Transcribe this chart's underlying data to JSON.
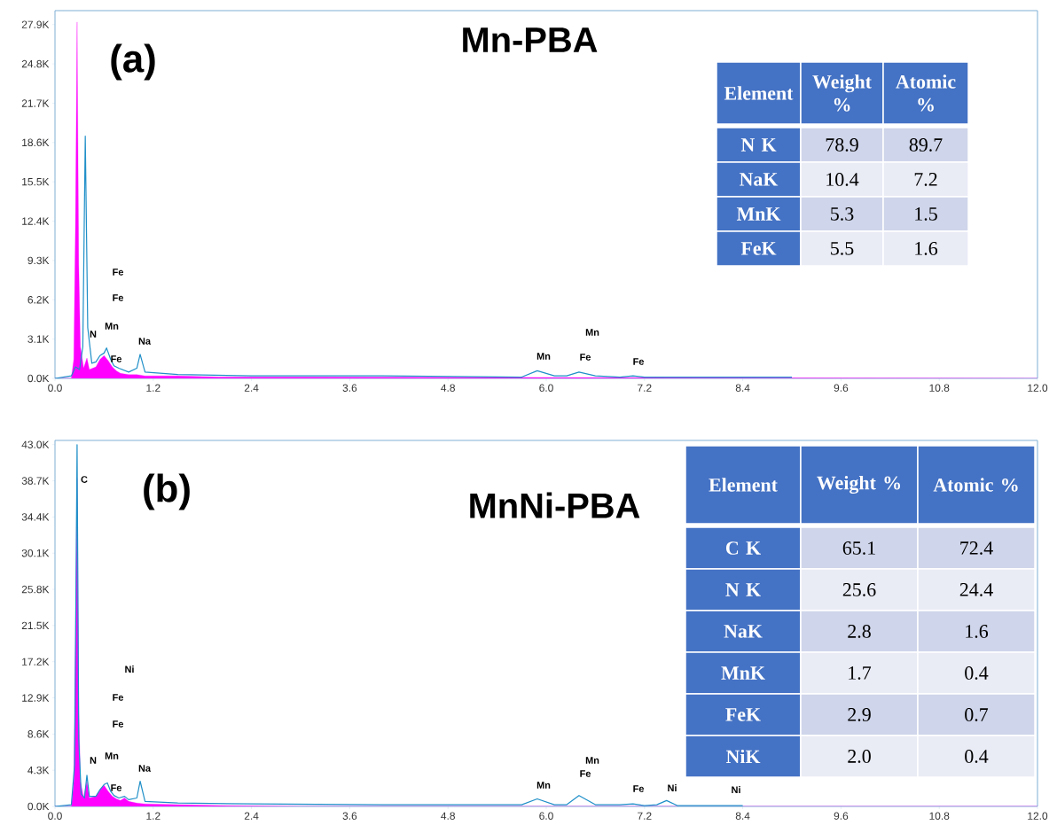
{
  "chart_data": [
    {
      "type": "line",
      "title": "Mn-PBA",
      "xlim": [
        0,
        12
      ],
      "ylim": [
        0,
        29000
      ],
      "xticks": [
        {
          "value": 0,
          "label": "0.0"
        },
        1.2,
        2.4,
        3.6,
        4.8,
        {
          "value": 6,
          "label": "6.0"
        },
        7.2,
        8.4,
        9.6,
        10.8,
        {
          "value": 12,
          "label": "12.0"
        }
      ],
      "yticks": [
        {
          "value": 0,
          "label": "0.0K"
        },
        {
          "value": 3100,
          "label": "3.1K"
        },
        {
          "value": 6200,
          "label": "6.2K"
        },
        {
          "value": 9300,
          "label": "9.3K"
        },
        {
          "value": 12400,
          "label": "12.4K"
        },
        {
          "value": 15500,
          "label": "15.5K"
        },
        {
          "value": 18600,
          "label": "18.6K"
        },
        {
          "value": 21700,
          "label": "21.7K"
        },
        {
          "value": 24800,
          "label": "24.8K"
        },
        {
          "value": 27900,
          "label": "27.9K"
        }
      ],
      "series": [
        {
          "type": "area",
          "color": "#ff00ff",
          "x": [
            0,
            0.2,
            0.23,
            0.25,
            0.27,
            0.29,
            0.31,
            0.35,
            0.39,
            0.42,
            0.5,
            0.55,
            0.6,
            0.65,
            0.7,
            0.75,
            0.8,
            0.9,
            1.0,
            1.1,
            1.5,
            2.0,
            3.0,
            12.0
          ],
          "values": [
            0,
            0,
            1500,
            12000,
            28100,
            9000,
            2500,
            800,
            1600,
            700,
            900,
            1500,
            1800,
            1400,
            900,
            600,
            400,
            300,
            300,
            200,
            200,
            100,
            100,
            0
          ]
        },
        {
          "type": "line",
          "color": "#1f8fc8",
          "x": [
            0,
            0.2,
            0.25,
            0.3,
            0.34,
            0.37,
            0.4,
            0.45,
            0.5,
            0.55,
            0.6,
            0.63,
            0.68,
            0.72,
            0.78,
            0.9,
            1.0,
            1.04,
            1.1,
            1.5,
            2.4,
            4.0,
            5.7,
            5.89,
            6.1,
            6.25,
            6.4,
            6.6,
            6.9,
            7.06,
            7.2,
            9.0
          ],
          "values": [
            0,
            200,
            900,
            700,
            2500,
            19100,
            4000,
            1200,
            1300,
            1800,
            2000,
            2400,
            1500,
            1000,
            800,
            500,
            800,
            1900,
            500,
            300,
            200,
            200,
            100,
            600,
            200,
            200,
            500,
            200,
            100,
            200,
            100,
            100
          ]
        }
      ],
      "annotations": [
        "(a)",
        "N",
        "Fe",
        "Mn",
        "Fe",
        "Fe",
        "Na",
        "Mn",
        "Fe",
        "Mn",
        "Fe"
      ]
    },
    {
      "type": "other",
      "legend_title": "Element",
      "data_labels": true,
      "categories": [
        "N K",
        "NaK",
        "MnK",
        "FeK"
      ],
      "series": [
        {
          "name": "Weight %",
          "values": [
            78.9,
            10.4,
            5.3,
            5.5
          ],
          "colors": [
            "#cfd5ea",
            "#e9ebf5",
            "#cfd5ea",
            "#e9ebf5"
          ]
        },
        {
          "name": "Atomic %",
          "values": [
            89.7,
            7.2,
            1.5,
            1.6
          ],
          "colors": [
            "#cfd5ea",
            "#e9ebf5",
            "#cfd5ea",
            "#e9ebf5"
          ]
        }
      ]
    },
    {
      "type": "line",
      "title": "MnNi-PBA",
      "xlim": [
        0,
        12
      ],
      "ylim": [
        0,
        43500
      ],
      "xticks": [
        {
          "value": 0,
          "label": "0.0"
        },
        1.2,
        2.4,
        3.6,
        4.8,
        {
          "value": 6,
          "label": "6.0"
        },
        7.2,
        8.4,
        9.6,
        10.8,
        {
          "value": 12,
          "label": "12.0"
        }
      ],
      "yticks": [
        {
          "value": 0,
          "label": "0.0K"
        },
        {
          "value": 4300,
          "label": "4.3K"
        },
        {
          "value": 8600,
          "label": "8.6K"
        },
        {
          "value": 12900,
          "label": "12.9K"
        },
        {
          "value": 17200,
          "label": "17.2K"
        },
        {
          "value": 21500,
          "label": "21.5K"
        },
        {
          "value": 25800,
          "label": "25.8K"
        },
        {
          "value": 30100,
          "label": "30.1K"
        },
        {
          "value": 34400,
          "label": "34.4K"
        },
        {
          "value": 38700,
          "label": "38.7K"
        },
        {
          "value": 43000,
          "label": "43.0K"
        }
      ],
      "series": [
        {
          "type": "area",
          "color": "#ff00ff",
          "x": [
            0,
            0.2,
            0.23,
            0.25,
            0.27,
            0.29,
            0.31,
            0.35,
            0.39,
            0.42,
            0.5,
            0.55,
            0.6,
            0.65,
            0.7,
            0.75,
            0.8,
            0.85,
            0.9,
            1.0,
            1.1,
            1.5,
            2.0,
            3.0,
            12.0
          ],
          "values": [
            0,
            0,
            3000,
            20000,
            39000,
            12000,
            3000,
            1000,
            3000,
            1000,
            1200,
            2000,
            2500,
            1800,
            1200,
            900,
            700,
            1000,
            600,
            400,
            300,
            200,
            100,
            0,
            0
          ]
        },
        {
          "type": "line",
          "color": "#1f8fc8",
          "x": [
            0,
            0.2,
            0.24,
            0.27,
            0.29,
            0.32,
            0.36,
            0.39,
            0.42,
            0.5,
            0.55,
            0.6,
            0.64,
            0.68,
            0.72,
            0.78,
            0.85,
            0.9,
            1.0,
            1.04,
            1.1,
            1.5,
            2.4,
            4.0,
            5.7,
            5.89,
            6.1,
            6.25,
            6.4,
            6.6,
            6.9,
            7.06,
            7.2,
            7.35,
            7.47,
            7.6,
            8.1,
            8.26,
            8.4
          ],
          "values": [
            0,
            200,
            5000,
            43000,
            8000,
            1500,
            1000,
            3700,
            1200,
            1200,
            2000,
            2600,
            2800,
            1800,
            1300,
            1000,
            1200,
            800,
            1000,
            3000,
            600,
            400,
            300,
            200,
            200,
            900,
            200,
            200,
            1300,
            200,
            200,
            300,
            100,
            200,
            700,
            100,
            100,
            100,
            100
          ]
        }
      ],
      "annotations": [
        "(b)",
        "C",
        "N",
        "Fe",
        "Mn",
        "Fe",
        "Fe",
        "Ni",
        "Na",
        "Mn",
        "Fe",
        "Mn",
        "Fe",
        "Ni",
        "Ni"
      ]
    },
    {
      "type": "other",
      "legend_title": "Element",
      "data_labels": true,
      "categories": [
        "C K",
        "N K",
        "NaK",
        "MnK",
        "FeK",
        "NiK"
      ],
      "series": [
        {
          "name": "Weight %",
          "values": [
            65.1,
            25.6,
            2.8,
            1.7,
            2.9,
            2.0
          ],
          "value_labels": [
            "65.1",
            "25.6",
            "2.8",
            "1.7",
            "2.9",
            "2.0"
          ],
          "colors": [
            "#cfd5ea",
            "#e9ebf5",
            "#cfd5ea",
            "#e9ebf5",
            "#cfd5ea",
            "#e9ebf5"
          ]
        },
        {
          "name": "Atomic %",
          "values": [
            72.4,
            24.4,
            1.6,
            0.4,
            0.7,
            0.4
          ],
          "colors": [
            "#cfd5ea",
            "#e9ebf5",
            "#cfd5ea",
            "#e9ebf5",
            "#cfd5ea",
            "#e9ebf5"
          ]
        }
      ]
    }
  ]
}
